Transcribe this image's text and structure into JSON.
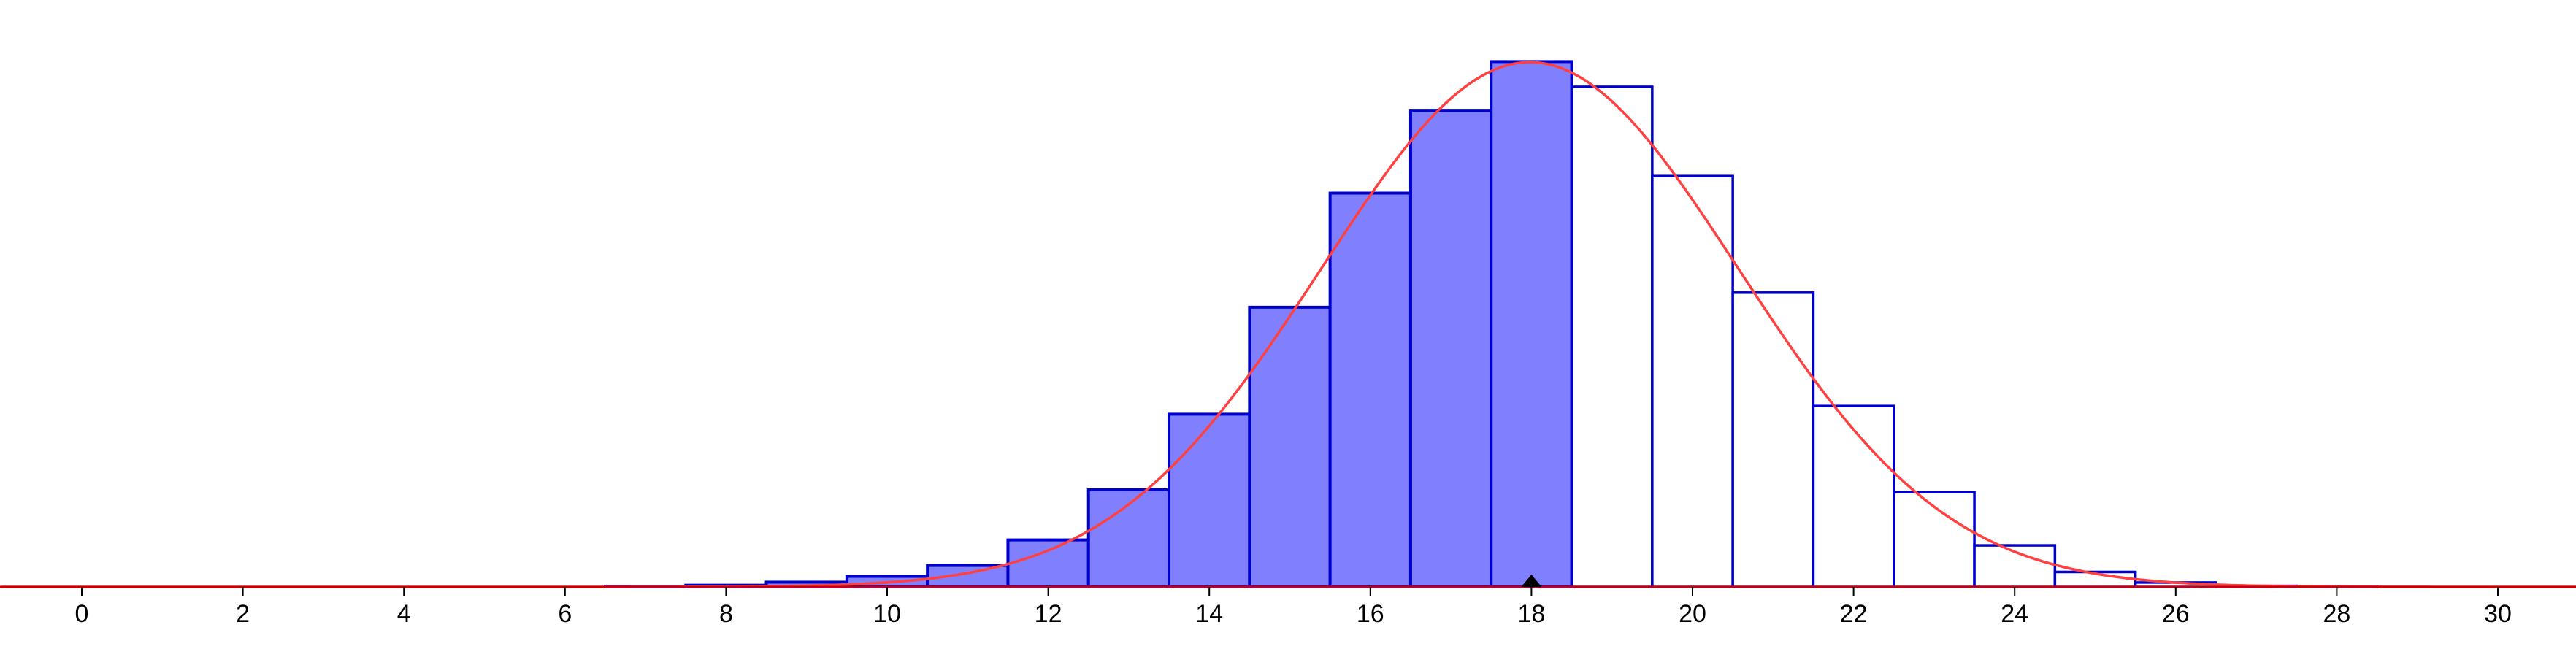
{
  "chart_data": {
    "type": "bar",
    "x_ticks": [
      0,
      2,
      4,
      6,
      8,
      10,
      12,
      14,
      16,
      18,
      20,
      22,
      24,
      26,
      28,
      30
    ],
    "xlim": [
      -1,
      31
    ],
    "ylim": [
      0,
      0.15
    ],
    "grid": false,
    "bars": {
      "x": [
        0,
        1,
        2,
        3,
        4,
        5,
        6,
        7,
        8,
        9,
        10,
        11,
        12,
        13,
        14,
        15,
        16,
        17,
        18,
        19,
        20,
        21,
        22,
        23,
        24,
        25,
        26,
        27,
        28,
        29,
        30
      ],
      "values": [
        0,
        0,
        0,
        0,
        0,
        0,
        0,
        0.0002,
        0.0005,
        0.0014,
        0.0031,
        0.0063,
        0.0138,
        0.0285,
        0.0507,
        0.0821,
        0.1156,
        0.1399,
        0.1542,
        0.1468,
        0.1206,
        0.0864,
        0.0531,
        0.0278,
        0.0122,
        0.0044,
        0.0013,
        0.0003,
        0.0001,
        0,
        0
      ],
      "shaded_up_to": 18,
      "shaded_fill": "#8080ff",
      "outline": "#0000cc"
    },
    "curve": {
      "type": "normal",
      "mean": 17.98,
      "sd": 2.59,
      "color": "#ff4040"
    },
    "marker": {
      "x": 18,
      "shape": "triangle",
      "color": "#000000"
    },
    "axis_color": "#cc0000"
  }
}
